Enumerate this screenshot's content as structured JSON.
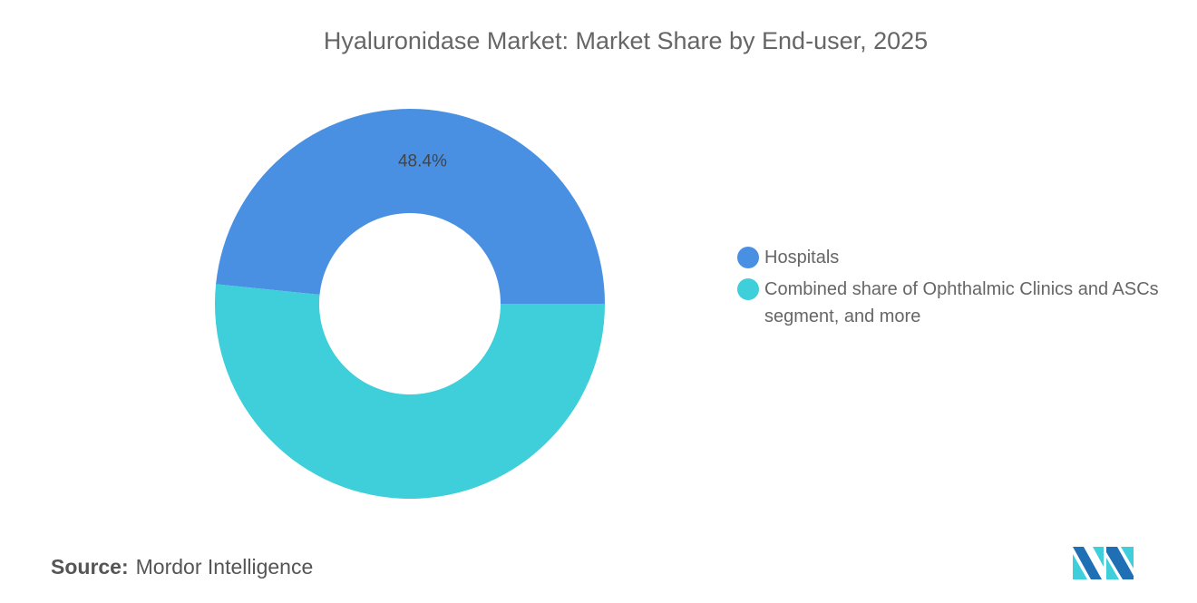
{
  "chart_data": {
    "type": "pie",
    "variant": "donut",
    "title": "Hyaluronidase Market: Market Share by End-user, 2025",
    "slices": [
      {
        "label": "Hospitals",
        "value": 48.4,
        "color": "#4a90e2",
        "data_label": "48.4%"
      },
      {
        "label": "Combined share of Ophthalmic Clinics and ASCs segment, and more",
        "value": 51.6,
        "color": "#3ecfda",
        "data_label": ""
      }
    ],
    "legend_position": "right"
  },
  "source": {
    "label": "Source:",
    "value": "Mordor Intelligence"
  },
  "logo": {
    "text": "Mordor Intelligence logo",
    "colors": [
      "#1f6fb5",
      "#3ecfda"
    ]
  }
}
